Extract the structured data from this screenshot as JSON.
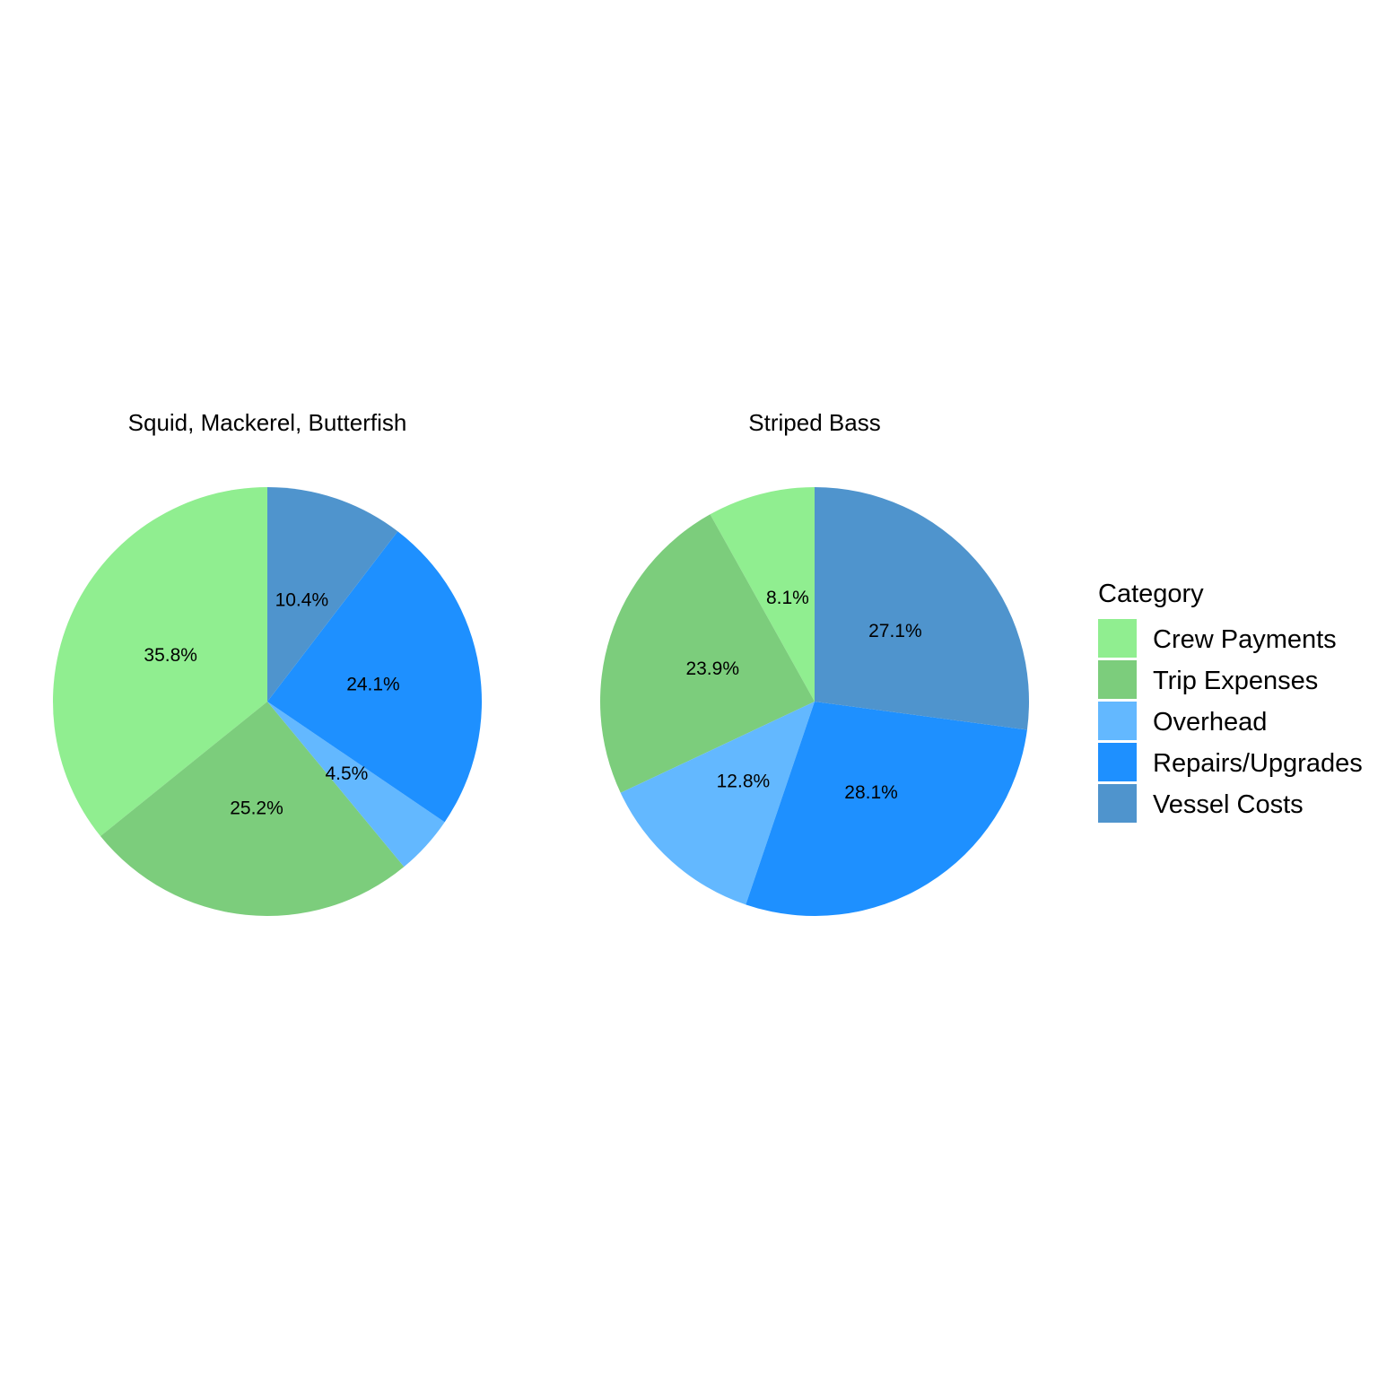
{
  "chart_data": [
    {
      "type": "pie",
      "title": "Squid, Mackerel, Butterfish",
      "categories": [
        "Crew Payments",
        "Trip Expenses",
        "Overhead",
        "Repairs/Upgrades",
        "Vessel Costs"
      ],
      "values": [
        35.8,
        25.2,
        4.5,
        24.1,
        10.4
      ],
      "labels": [
        "35.8%",
        "25.2%",
        "4.5%",
        "24.1%",
        "10.4%"
      ]
    },
    {
      "type": "pie",
      "title": "Striped Bass",
      "categories": [
        "Crew Payments",
        "Trip Expenses",
        "Overhead",
        "Repairs/Upgrades",
        "Vessel Costs"
      ],
      "values": [
        8.1,
        23.9,
        12.8,
        28.1,
        27.1
      ],
      "labels": [
        "8.1%",
        "23.9%",
        "12.8%",
        "28.1%",
        "27.1%"
      ]
    }
  ],
  "legend": {
    "title": "Category",
    "placement": "right",
    "items": [
      {
        "label": "Crew Payments",
        "color": "#90EE90"
      },
      {
        "label": "Trip Expenses",
        "color": "#7CCD7C"
      },
      {
        "label": "Overhead",
        "color": "#63B8FF"
      },
      {
        "label": "Repairs/Upgrades",
        "color": "#1E90FF"
      },
      {
        "label": "Vessel Costs",
        "color": "#4F94CD"
      }
    ]
  }
}
